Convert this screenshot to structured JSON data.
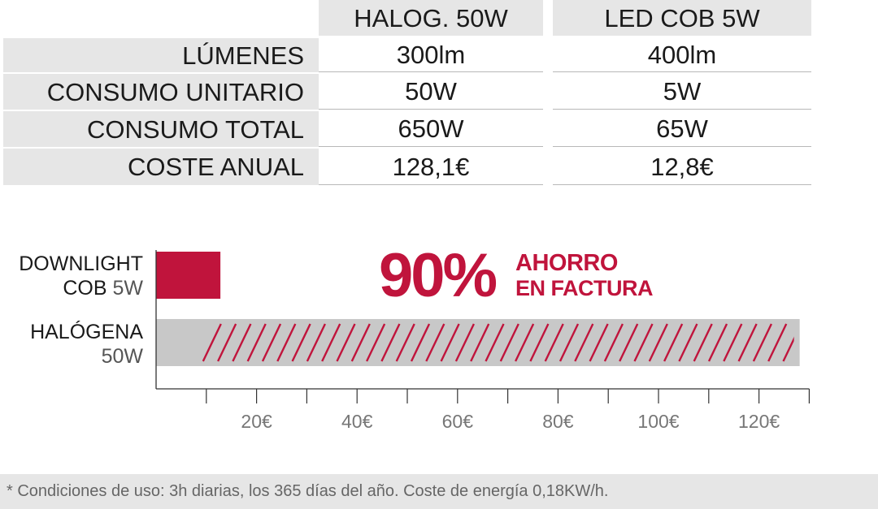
{
  "table": {
    "columns": [
      "HALOG. 50W",
      "LED COB 5W"
    ],
    "rows": [
      {
        "label": "LÚMENES",
        "values": [
          "300lm",
          "400lm"
        ]
      },
      {
        "label": "CONSUMO UNITARIO",
        "values": [
          "50W",
          "5W"
        ]
      },
      {
        "label": "CONSUMO TOTAL",
        "values": [
          "650W",
          "65W"
        ]
      },
      {
        "label": "COSTE ANUAL",
        "values": [
          "128,1€",
          "12,8€"
        ]
      }
    ]
  },
  "chart_data": {
    "type": "bar",
    "orientation": "horizontal",
    "categories": [
      "DOWNLIGHT COB 5W",
      "HALÓGENA 50W"
    ],
    "category_labels": [
      {
        "bold": "DOWNLIGHT",
        "line2_bold": "COB",
        "line2_light": "5W"
      },
      {
        "bold": "HALÓGENA",
        "line2_light": "50W"
      }
    ],
    "values": [
      12.8,
      128.1
    ],
    "xlim": [
      0,
      130
    ],
    "xticks": [
      20,
      40,
      60,
      80,
      100,
      120
    ],
    "xtick_labels": [
      "20€",
      "40€",
      "60€",
      "80€",
      "100€",
      "120€"
    ],
    "bar_colors": [
      "#c0143c",
      "#c8c8c8"
    ],
    "hatch_color": "#c0143c",
    "annotation": {
      "percent": "90%",
      "line1": "AHORRO",
      "line2": "EN FACTURA"
    }
  },
  "footnote": "* Condiciones de uso: 3h diarias, los 365 días del año. Coste de energía 0,18KW/h."
}
